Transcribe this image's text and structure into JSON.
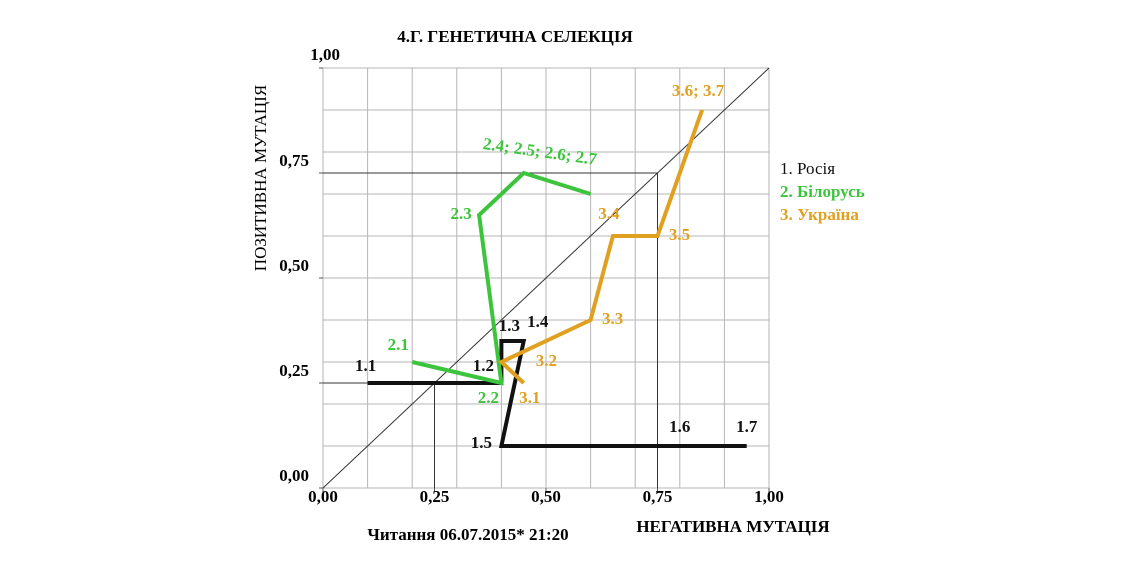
{
  "chart_data": {
    "type": "line",
    "title": "4.Г.  ГЕНЕТИЧНА СЕЛЕКЦІЯ",
    "x_label": "НЕГАТИВНА МУТАЦІЯ",
    "y_label": "ПОЗИТИВНА МУТАЦІЯ",
    "footnote": "Читання 06.07.2015* 21:20",
    "xlim": [
      0,
      1
    ],
    "ylim": [
      0,
      1
    ],
    "xticks": [
      {
        "value": 0,
        "label": "0,00"
      },
      {
        "value": 0.25,
        "label": "0,25"
      },
      {
        "value": 0.5,
        "label": "0,50"
      },
      {
        "value": 0.75,
        "label": "0,75"
      },
      {
        "value": 1,
        "label": "1,00"
      }
    ],
    "yticks": [
      {
        "value": 0,
        "label": "0,00"
      },
      {
        "value": 0.25,
        "label": "0,25"
      },
      {
        "value": 0.5,
        "label": "0,50"
      },
      {
        "value": 0.75,
        "label": "0,75"
      },
      {
        "value": 1,
        "label": "1,00"
      }
    ],
    "grid": true,
    "grid_lines": [
      0,
      0.1,
      0.2,
      0.3,
      0.4,
      0.5,
      0.6,
      0.7,
      0.8,
      0.9,
      1
    ],
    "reference_lines": [
      0.25,
      0.75
    ],
    "diagonal": true,
    "legend": "right",
    "series": [
      {
        "name": "1. Росія",
        "color": "#111111",
        "x": [
          0.1,
          0.4,
          0.4,
          0.45,
          0.4,
          0.8,
          0.95
        ],
        "values": [
          0.25,
          0.25,
          0.35,
          0.35,
          0.1,
          0.1,
          0.1
        ],
        "point_labels": [
          "1.1",
          "1.2",
          "1.3",
          "1.4",
          "1.5",
          "1.6",
          "1.7"
        ]
      },
      {
        "name": "2. Білорусь",
        "color": "#3cc43c",
        "x": [
          0.2,
          0.4,
          0.35,
          0.45,
          0.6
        ],
        "values": [
          0.3,
          0.25,
          0.65,
          0.75,
          0.7
        ],
        "point_labels": [
          "2.1",
          "2.2",
          "2.3",
          "2.4; 2.5; 2.6; 2.7",
          null
        ]
      },
      {
        "name": "3. Україна",
        "color": "#e0a020",
        "x": [
          0.45,
          0.4,
          0.6,
          0.65,
          0.75,
          0.85
        ],
        "values": [
          0.25,
          0.3,
          0.4,
          0.6,
          0.6,
          0.9
        ],
        "point_labels": [
          "3.1",
          "3.2",
          "3.3",
          "3.4",
          "3.5",
          "3.6; 3.7"
        ]
      }
    ]
  }
}
